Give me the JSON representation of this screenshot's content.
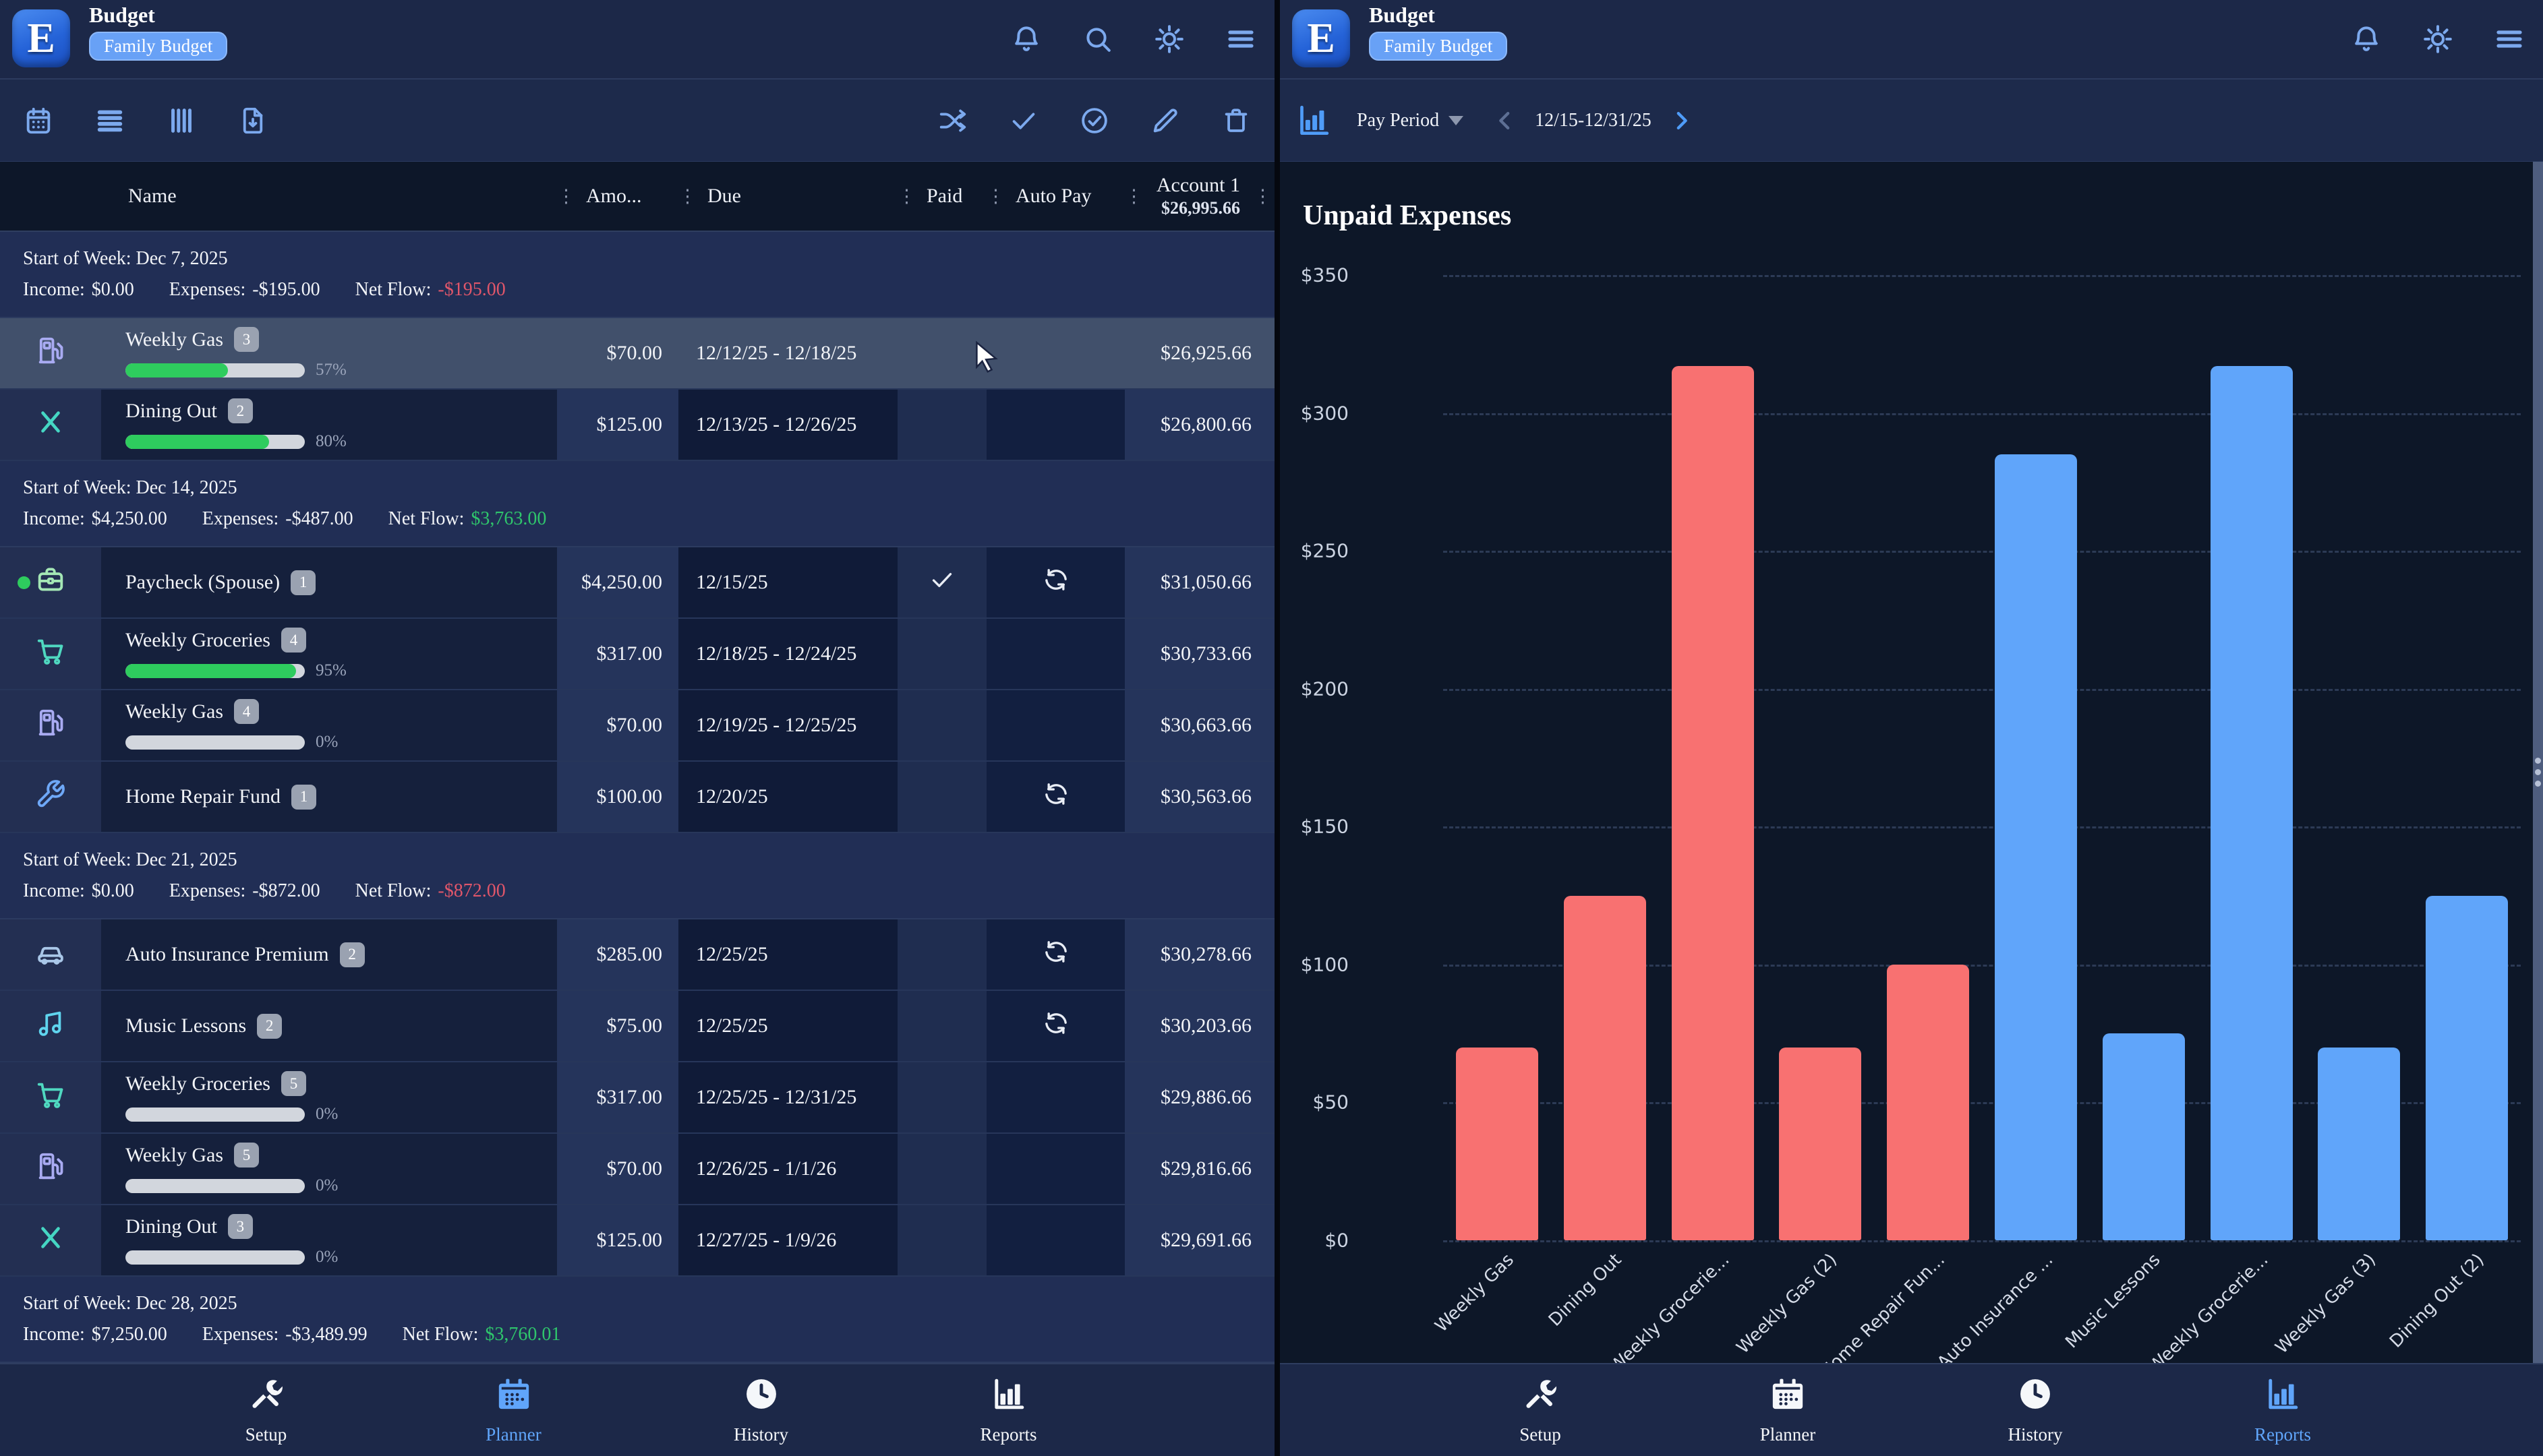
{
  "colors": {
    "accent_blue": "#60a5fa",
    "bar_red": "#f87171",
    "bar_blue": "#60a5fa",
    "positive_green": "#2fc56c",
    "negative_red": "#e0566a",
    "progress_green": "#2ecc5e"
  },
  "appbar": {
    "logo_letter": "E",
    "title": "Budget",
    "badge": "Family Budget"
  },
  "left": {
    "table": {
      "headers": {
        "name": "Name",
        "amount": "Amo...",
        "due": "Due",
        "paid": "Paid",
        "autopay": "Auto Pay",
        "account_title": "Account 1",
        "account_subtitle": "$26,995.66"
      },
      "groups": [
        {
          "start": "Start of Week: Dec 7, 2025",
          "income_label": "Income:",
          "income": "$0.00",
          "expenses_label": "Expenses:",
          "expenses": "-$195.00",
          "netflow_label": "Net Flow:",
          "netflow": "-$195.00",
          "netflow_sign": "negative",
          "rows": [
            {
              "icon": "fuel-pump",
              "icon_color": "#a9abf2",
              "name": "Weekly Gas",
              "count": "3",
              "progress": 57,
              "progress_label": "57%",
              "amount": "$70.00",
              "due": "12/12/25 - 12/18/25",
              "paid": false,
              "autopay": false,
              "account": "$26,925.66",
              "highlight": true,
              "status_dot": false
            },
            {
              "icon": "dining-x",
              "icon_color": "#45d6c3",
              "name": "Dining Out",
              "count": "2",
              "progress": 80,
              "progress_label": "80%",
              "amount": "$125.00",
              "due": "12/13/25 - 12/26/25",
              "paid": false,
              "autopay": false,
              "account": "$26,800.66",
              "highlight": false,
              "status_dot": false
            }
          ]
        },
        {
          "start": "Start of Week: Dec 14, 2025",
          "income_label": "Income:",
          "income": "$4,250.00",
          "expenses_label": "Expenses:",
          "expenses": "-$487.00",
          "netflow_label": "Net Flow:",
          "netflow": "$3,763.00",
          "netflow_sign": "positive",
          "rows": [
            {
              "icon": "briefcase",
              "icon_color": "#a4e7b5",
              "name": "Paycheck (Spouse)",
              "count": "1",
              "progress": null,
              "progress_label": "",
              "amount": "$4,250.00",
              "due": "12/15/25",
              "paid": true,
              "autopay": true,
              "account": "$31,050.66",
              "highlight": false,
              "status_dot": true
            },
            {
              "icon": "cart",
              "icon_color": "#4fd8c0",
              "name": "Weekly Groceries",
              "count": "4",
              "progress": 95,
              "progress_label": "95%",
              "amount": "$317.00",
              "due": "12/18/25 - 12/24/25",
              "paid": false,
              "autopay": false,
              "account": "$30,733.66",
              "highlight": false,
              "status_dot": false
            },
            {
              "icon": "fuel-pump",
              "icon_color": "#a9abf2",
              "name": "Weekly Gas",
              "count": "4",
              "progress": 0,
              "progress_label": "0%",
              "amount": "$70.00",
              "due": "12/19/25 - 12/25/25",
              "paid": false,
              "autopay": false,
              "account": "$30,663.66",
              "highlight": false,
              "status_dot": false
            },
            {
              "icon": "wrench",
              "icon_color": "#6ea8f7",
              "name": "Home Repair Fund",
              "count": "1",
              "progress": null,
              "progress_label": "",
              "amount": "$100.00",
              "due": "12/20/25",
              "paid": false,
              "autopay": true,
              "account": "$30,563.66",
              "highlight": false,
              "status_dot": false
            }
          ]
        },
        {
          "start": "Start of Week: Dec 21, 2025",
          "income_label": "Income:",
          "income": "$0.00",
          "expenses_label": "Expenses:",
          "expenses": "-$872.00",
          "netflow_label": "Net Flow:",
          "netflow": "-$872.00",
          "netflow_sign": "negative",
          "rows": [
            {
              "icon": "car",
              "icon_color": "#a9c7e8",
              "name": "Auto Insurance Premium",
              "count": "2",
              "progress": null,
              "progress_label": "",
              "amount": "$285.00",
              "due": "12/25/25",
              "paid": false,
              "autopay": true,
              "account": "$30,278.66",
              "highlight": false,
              "status_dot": false
            },
            {
              "icon": "music-note",
              "icon_color": "#5fd4ee",
              "name": "Music Lessons",
              "count": "2",
              "progress": null,
              "progress_label": "",
              "amount": "$75.00",
              "due": "12/25/25",
              "paid": false,
              "autopay": true,
              "account": "$30,203.66",
              "highlight": false,
              "status_dot": false
            },
            {
              "icon": "cart",
              "icon_color": "#4fd8c0",
              "name": "Weekly Groceries",
              "count": "5",
              "progress": 0,
              "progress_label": "0%",
              "amount": "$317.00",
              "due": "12/25/25 - 12/31/25",
              "paid": false,
              "autopay": false,
              "account": "$29,886.66",
              "highlight": false,
              "status_dot": false
            },
            {
              "icon": "fuel-pump",
              "icon_color": "#a9abf2",
              "name": "Weekly Gas",
              "count": "5",
              "progress": 0,
              "progress_label": "0%",
              "amount": "$70.00",
              "due": "12/26/25 - 1/1/26",
              "paid": false,
              "autopay": false,
              "account": "$29,816.66",
              "highlight": false,
              "status_dot": false
            },
            {
              "icon": "dining-x",
              "icon_color": "#45d6c3",
              "name": "Dining Out",
              "count": "3",
              "progress": 0,
              "progress_label": "0%",
              "amount": "$125.00",
              "due": "12/27/25 - 1/9/26",
              "paid": false,
              "autopay": false,
              "account": "$29,691.66",
              "highlight": false,
              "status_dot": false
            }
          ]
        },
        {
          "start": "Start of Week: Dec 28, 2025",
          "income_label": "Income:",
          "income": "$7,250.00",
          "expenses_label": "Expenses:",
          "expenses": "-$3,489.99",
          "netflow_label": "Net Flow:",
          "netflow": "$3,760.01",
          "netflow_sign": "positive",
          "rows": []
        }
      ]
    }
  },
  "right": {
    "toolbar": {
      "view_label": "Pay Period",
      "period": "12/15-12/31/25"
    }
  },
  "chart_data": {
    "type": "bar",
    "title": "Unpaid Expenses",
    "categories": [
      "Weekly Gas",
      "Dining Out",
      "Weekly Grocerie...",
      "Weekly Gas (2)",
      "Home Repair Fun...",
      "Auto Insurance ...",
      "Music Lessons",
      "Weekly Grocerie...",
      "Weekly Gas (3)",
      "Dining Out (2)"
    ],
    "values": [
      70,
      125,
      317,
      70,
      100,
      285,
      75,
      317,
      70,
      125
    ],
    "bar_colors": [
      "#f87171",
      "#f87171",
      "#f87171",
      "#f87171",
      "#f87171",
      "#60a5fa",
      "#60a5fa",
      "#60a5fa",
      "#60a5fa",
      "#60a5fa"
    ],
    "y_ticks": [
      "$350",
      "$300",
      "$250",
      "$200",
      "$150",
      "$100",
      "$50",
      "$0"
    ],
    "ylim": [
      0,
      350
    ],
    "xlabel": "",
    "ylabel": "",
    "grid": "dashed-horizontal",
    "legend": "none",
    "x_tick_rotation": -45
  },
  "nav": {
    "items": [
      {
        "label": "Setup",
        "icon": "tools"
      },
      {
        "label": "Planner",
        "icon": "calendar-filled"
      },
      {
        "label": "History",
        "icon": "clock"
      },
      {
        "label": "Reports",
        "icon": "bar-chart"
      }
    ],
    "left_active": "Planner",
    "right_active": "Reports"
  }
}
